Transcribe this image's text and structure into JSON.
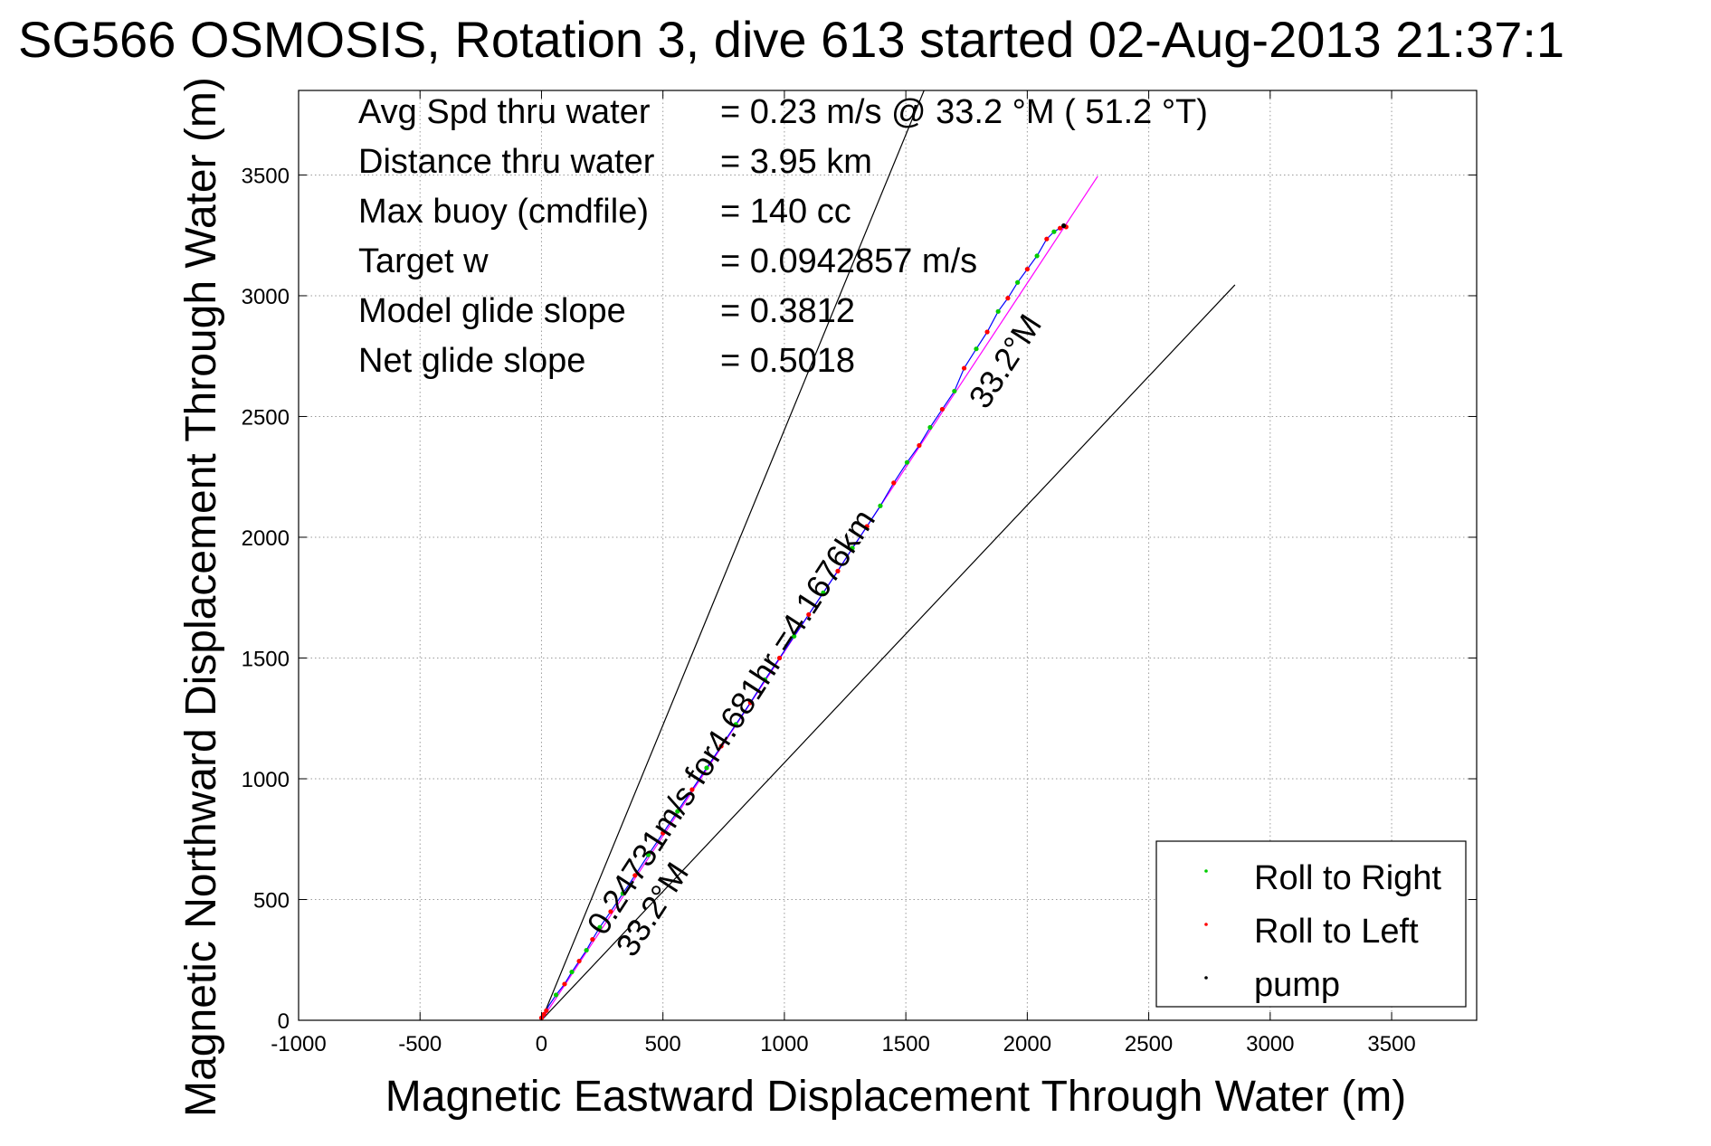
{
  "chart_data": {
    "type": "scatter",
    "title": "SG566 OSMOSIS, Rotation 3, dive 613 started 02-Aug-2013 21:37:1",
    "xlabel": "Magnetic Eastward Displacement Through Water (m)",
    "ylabel": "Magnetic Northward Displacement Through Water (m)",
    "xlim": [
      -1000,
      3850
    ],
    "ylim": [
      0,
      3850
    ],
    "xticks": [
      -1000,
      -500,
      0,
      500,
      1000,
      1500,
      2000,
      2500,
      3000,
      3500
    ],
    "yticks": [
      0,
      500,
      1000,
      1500,
      2000,
      2500,
      3000,
      3500
    ],
    "xtick_labels": [
      "-1000",
      "-500",
      "0",
      "500",
      "1000",
      "1500",
      "2000",
      "2500",
      "3000",
      "3500"
    ],
    "ytick_labels": [
      "0",
      "500",
      "1000",
      "1500",
      "2000",
      "2500",
      "3000",
      "3500"
    ],
    "grid": true,
    "legend_position": "bottom-right",
    "summary": [
      {
        "label": "Avg Spd thru water",
        "value": "=  0.23 m/s @  33.2 °M ( 51.2 °T)"
      },
      {
        "label": "Distance thru water",
        "value": "=  3.95 km"
      },
      {
        "label": "Max buoy (cmdfile)",
        "value": "= 140 cc"
      },
      {
        "label": "Target w",
        "value": "= 0.0942857 m/s"
      },
      {
        "label": "Model glide slope",
        "value": "= 0.3812"
      },
      {
        "label": "Net glide slope",
        "value": "= 0.5018"
      }
    ],
    "annotations": {
      "heading_upper": "33.2°M",
      "heading_lower": "33.2°M",
      "track_label": "0.24731m/s for4.681hr =4.1676km"
    },
    "reference_lines": [
      {
        "name": "upper-bound",
        "from": [
          0,
          0
        ],
        "to": [
          1575,
          3850
        ],
        "color": "#000000"
      },
      {
        "name": "lower-bound",
        "from": [
          0,
          0
        ],
        "to": [
          2855,
          3045
        ],
        "color": "#000000"
      },
      {
        "name": "net-track",
        "from": [
          0,
          0
        ],
        "to": [
          2290,
          3495
        ],
        "color": "#ff00ff"
      }
    ],
    "track": {
      "color": "#0000ff",
      "x": [
        0,
        30,
        60,
        95,
        125,
        155,
        185,
        210,
        240,
        285,
        335,
        385,
        440,
        500,
        560,
        620,
        680,
        740,
        800,
        860,
        920,
        980,
        1040,
        1100,
        1160,
        1220,
        1280,
        1340,
        1395,
        1450,
        1505,
        1555,
        1600,
        1650,
        1700,
        1740,
        1790,
        1835,
        1880,
        1920,
        1960,
        2000,
        2040,
        2080,
        2110,
        2135,
        2160
      ],
      "y": [
        0,
        60,
        105,
        150,
        200,
        245,
        290,
        335,
        385,
        450,
        525,
        600,
        685,
        775,
        865,
        955,
        1045,
        1135,
        1225,
        1315,
        1410,
        1500,
        1590,
        1680,
        1770,
        1860,
        1955,
        2045,
        2130,
        2225,
        2310,
        2380,
        2455,
        2530,
        2605,
        2700,
        2780,
        2850,
        2935,
        2990,
        3055,
        3110,
        3165,
        3235,
        3265,
        3280,
        3285
      ]
    },
    "series": [
      {
        "name": "Roll to Right",
        "color": "#00cc00",
        "x": [
          60,
          125,
          185,
          240,
          335,
          440,
          560,
          680,
          800,
          920,
          1040,
          1160,
          1280,
          1395,
          1505,
          1600,
          1700,
          1790,
          1880,
          1960,
          2040,
          2110
        ],
        "y": [
          105,
          200,
          290,
          385,
          525,
          685,
          865,
          1045,
          1225,
          1410,
          1590,
          1770,
          1955,
          2130,
          2310,
          2455,
          2605,
          2780,
          2935,
          3055,
          3165,
          3265
        ]
      },
      {
        "name": "Roll to Left",
        "color": "#ff0000",
        "x": [
          0,
          10,
          20,
          95,
          155,
          210,
          285,
          385,
          500,
          620,
          740,
          860,
          980,
          1100,
          1220,
          1340,
          1450,
          1555,
          1650,
          1740,
          1835,
          1920,
          2000,
          2080,
          2135,
          2160
        ],
        "y": [
          10,
          25,
          40,
          150,
          245,
          335,
          450,
          600,
          775,
          955,
          1135,
          1315,
          1500,
          1680,
          1860,
          2045,
          2225,
          2380,
          2530,
          2700,
          2850,
          2990,
          3110,
          3235,
          3280,
          3285
        ]
      },
      {
        "name": "pump",
        "color": "#000000",
        "x": [
          2150
        ],
        "y": [
          3290
        ]
      }
    ]
  }
}
